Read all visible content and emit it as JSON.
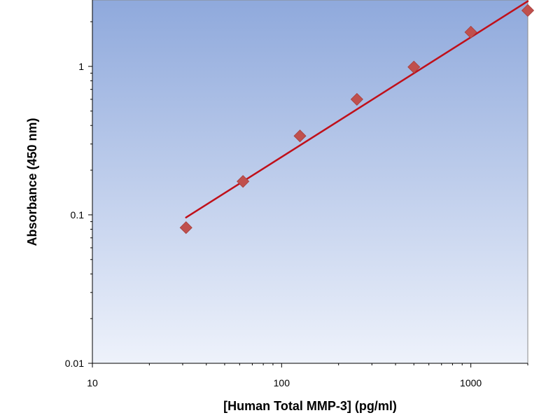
{
  "chart_data": {
    "type": "scatter",
    "title": "",
    "xlabel": "[Human Total MMP-3] (pg/ml)",
    "ylabel": "Absorbance (450 nm)",
    "xscale": "log",
    "yscale": "log",
    "xlim": [
      10,
      2000
    ],
    "ylim": [
      0.01,
      2.8
    ],
    "xticks": [
      10,
      100,
      1000
    ],
    "xtick_labels": [
      "10",
      "100",
      "1000"
    ],
    "yticks": [
      0.01,
      0.1,
      1
    ],
    "ytick_labels": [
      "0.01",
      "0.1",
      "1"
    ],
    "grid": false,
    "background": "blue-gradient",
    "series": [
      {
        "kind": "points",
        "marker": "diamond",
        "color": "#c0504d",
        "x": [
          31.25,
          62.5,
          125,
          250,
          500,
          1000,
          2000
        ],
        "y": [
          0.082,
          0.168,
          0.34,
          0.6,
          0.99,
          1.7,
          2.38
        ]
      },
      {
        "kind": "fit-line",
        "color": "#c0101a",
        "x": [
          31.25,
          2000
        ],
        "y": [
          0.096,
          2.75
        ]
      }
    ]
  },
  "colors": {
    "plot_bg_top": "#8fa9dc",
    "plot_bg_bottom": "#eef2fb",
    "marker": "#c0504d",
    "fit_line": "#c0101a"
  }
}
